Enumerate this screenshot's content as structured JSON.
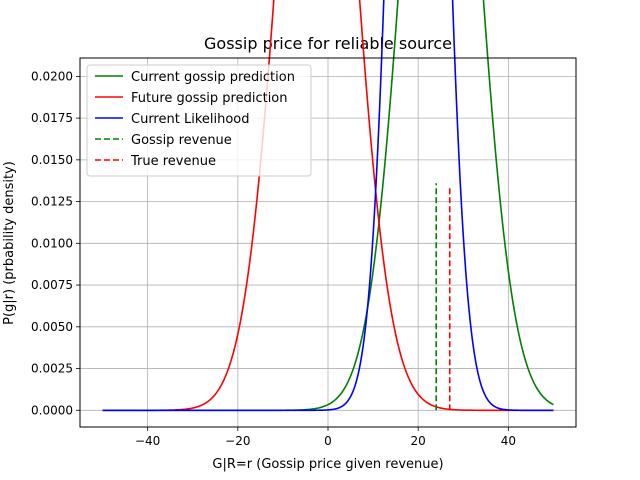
{
  "chart_data": {
    "type": "line",
    "title": "Gossip price for reliable source",
    "xlabel": "G|R=r (Gossip price given revenue)",
    "ylabel": "P(g|r) (prbability density)",
    "xlim": [
      -55,
      55
    ],
    "ylim": [
      -0.001,
      0.0211
    ],
    "xticks": [
      -40,
      -20,
      0,
      20,
      40
    ],
    "xtick_labels": [
      "−40",
      "−20",
      "0",
      "20",
      "40"
    ],
    "yticks": [
      0.0,
      0.0025,
      0.005,
      0.0075,
      0.01,
      0.0125,
      0.015,
      0.0175,
      0.02
    ],
    "ytick_labels": [
      "0.0000",
      "0.0025",
      "0.0050",
      "0.0075",
      "0.0100",
      "0.0125",
      "0.0150",
      "0.0175",
      "0.0200"
    ],
    "grid": true,
    "legend_position": "top-left",
    "series": [
      {
        "name": "Current gossip prediction",
        "style": "solid",
        "color": "#008000",
        "distribution": {
          "kind": "normal",
          "mean": 25,
          "std": 7.9,
          "x_range": [
            -50,
            50
          ]
        }
      },
      {
        "name": "Future gossip prediction",
        "style": "solid",
        "color": "#ff0000",
        "distribution": {
          "kind": "normal",
          "mean": -2.5,
          "std": 8.0,
          "x_range": [
            -50,
            50
          ]
        }
      },
      {
        "name": "Current Likelihood",
        "style": "solid",
        "color": "#0000ff",
        "distribution": {
          "kind": "normal",
          "mean": 20,
          "std": 4.95,
          "x_range": [
            -50,
            50
          ]
        }
      },
      {
        "name": "Gossip revenue",
        "style": "dashed",
        "color": "#008000",
        "vline": {
          "x": 24,
          "y": [
            0,
            0.0136
          ]
        }
      },
      {
        "name": "True revenue",
        "style": "dashed",
        "color": "#ff0000",
        "vline": {
          "x": 27,
          "y": [
            0,
            0.0133
          ]
        }
      }
    ]
  }
}
